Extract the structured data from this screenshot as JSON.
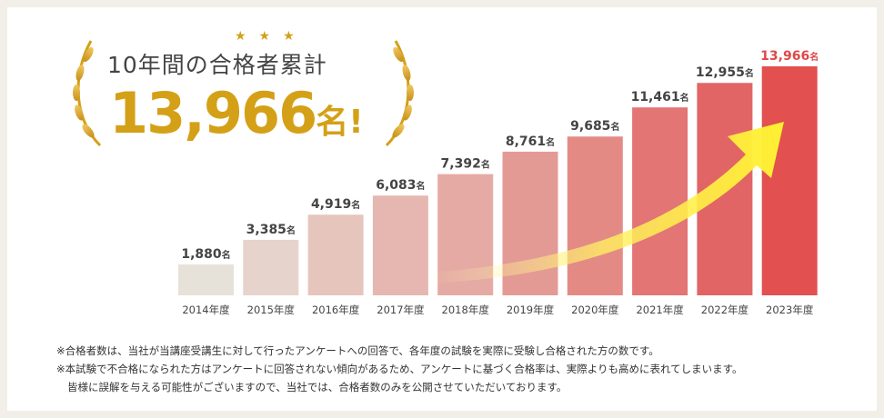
{
  "headline": {
    "title": "10年間の合格者累計",
    "total": "13,966",
    "unit": "名",
    "exclaim": "!",
    "stars": "★★★"
  },
  "chart_data": {
    "type": "bar",
    "categories": [
      "2014年度",
      "2015年度",
      "2016年度",
      "2017年度",
      "2018年度",
      "2019年度",
      "2020年度",
      "2021年度",
      "2022年度",
      "2023年度"
    ],
    "values": [
      1880,
      3385,
      4919,
      6083,
      7392,
      8761,
      9685,
      11461,
      12955,
      13966
    ],
    "labels": [
      "1,880",
      "3,385",
      "4,919",
      "6,083",
      "7,392",
      "8,761",
      "9,685",
      "11,461",
      "12,955",
      "13,966"
    ],
    "value_unit": "名",
    "ylim": [
      0,
      13966
    ],
    "grid": false,
    "colors": [
      "#e6e2da",
      "#e6d3cb",
      "#e6c5bd",
      "#e6b7b0",
      "#e5aaa3",
      "#e49a94",
      "#e48a85",
      "#e37575",
      "#e26565",
      "#e25050"
    ],
    "highlight_label_color": "#e04848",
    "annotation": "yellow-upward-trend-arrow"
  },
  "notes": [
    "※合格者数は、当社が当講座受講生に対して行ったアンケートへの回答で、各年度の試験を実際に受験し合格された方の数です。",
    "※本試験で不合格になられた方はアンケートに回答されない傾向があるため、アンケートに基づく合格率は、実際よりも高めに表れてしまいます。",
    "皆様に誤解を与える可能性がございますので、当社では、合格者数のみを公開させていただいております。"
  ]
}
